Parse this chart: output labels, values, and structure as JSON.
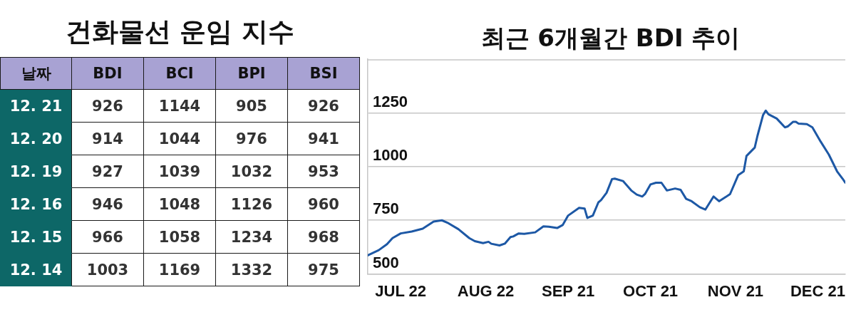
{
  "chart_data": [
    {
      "type": "heatmap",
      "title": "건화물선 운임 지수",
      "ylabel": "날짜",
      "categories": [
        "BDI",
        "BCI",
        "BPI",
        "BSI"
      ],
      "y_categories": [
        "12. 21",
        "12. 20",
        "12. 19",
        "12. 16",
        "12. 15",
        "12. 14"
      ],
      "cells": [
        [
          926,
          1144,
          905,
          926
        ],
        [
          914,
          1044,
          976,
          941
        ],
        [
          927,
          1039,
          1032,
          953
        ],
        [
          946,
          1048,
          1126,
          960
        ],
        [
          966,
          1058,
          1234,
          968
        ],
        [
          1003,
          1169,
          1332,
          975
        ]
      ],
      "data_labels": true
    },
    {
      "type": "line",
      "title": "최근 6개월간 BDI 추이",
      "color": "#1d58a5",
      "x": [
        "--07-10",
        "--07-14",
        "--07-17",
        "--07-19",
        "--07-22",
        "--07-26",
        "--07-30",
        "--08-03",
        "--08-06",
        "--08-08",
        "--08-12",
        "--08-16",
        "--08-18",
        "--08-21",
        "--08-23",
        "--08-24",
        "--08-27",
        "--08-29",
        "--08-31",
        "--09-01",
        "--09-03",
        "--09-05",
        "--09-09",
        "--09-12",
        "--09-14",
        "--09-17",
        "--09-19",
        "--09-21",
        "--09-25",
        "--09-27",
        "--09-28",
        "--09-30",
        "--10-02",
        "--10-03",
        "--10-05",
        "--10-07",
        "--10-08",
        "--10-11",
        "--10-14",
        "--10-16",
        "--10-18",
        "--10-19",
        "--10-21",
        "--10-23",
        "--10-25",
        "--10-27",
        "--10-30",
        "--11-01",
        "--11-03",
        "--11-05",
        "--11-08",
        "--11-10",
        "--11-13",
        "--11-15",
        "--11-17",
        "--11-19",
        "--11-22",
        "--11-24",
        "--11-25",
        "--11-28",
        "--11-29",
        "--12-01",
        "--12-02",
        "--12-03",
        "--12-06",
        "--12-09",
        "--12-10",
        "--12-12",
        "--12-13",
        "--12-14",
        "--12-17",
        "--12-19",
        "--12-22",
        "--12-25",
        "--12-28",
        "--12-30",
        "--12-31"
      ],
      "values": [
        587,
        611,
        639,
        667,
        689,
        698,
        711,
        744,
        750,
        739,
        709,
        667,
        653,
        644,
        650,
        641,
        633,
        642,
        672,
        675,
        689,
        687,
        694,
        722,
        720,
        714,
        728,
        772,
        808,
        805,
        761,
        772,
        833,
        844,
        878,
        942,
        944,
        933,
        889,
        870,
        861,
        872,
        917,
        925,
        925,
        889,
        898,
        892,
        850,
        839,
        811,
        800,
        861,
        839,
        855,
        872,
        961,
        978,
        1050,
        1089,
        1144,
        1239,
        1261,
        1244,
        1224,
        1183,
        1187,
        1209,
        1209,
        1200,
        1198,
        1183,
        1117,
        1056,
        978,
        944,
        925
      ],
      "xlim": [
        "--07-10",
        "--12-31"
      ],
      "xticks": [
        {
          "value": "--07-22",
          "label": "JUL 22"
        },
        {
          "value": "--08-22",
          "label": "AUG 22"
        },
        {
          "value": "--09-21",
          "label": "SEP 21"
        },
        {
          "value": "--10-21",
          "label": "OCT 21"
        },
        {
          "value": "--11-21",
          "label": "NOV 21"
        },
        {
          "value": "--12-21",
          "label": "DEC 21"
        }
      ],
      "ylim": [
        500,
        1500
      ],
      "yticks": [
        500,
        750,
        1000,
        1250
      ],
      "grid": "y"
    }
  ]
}
